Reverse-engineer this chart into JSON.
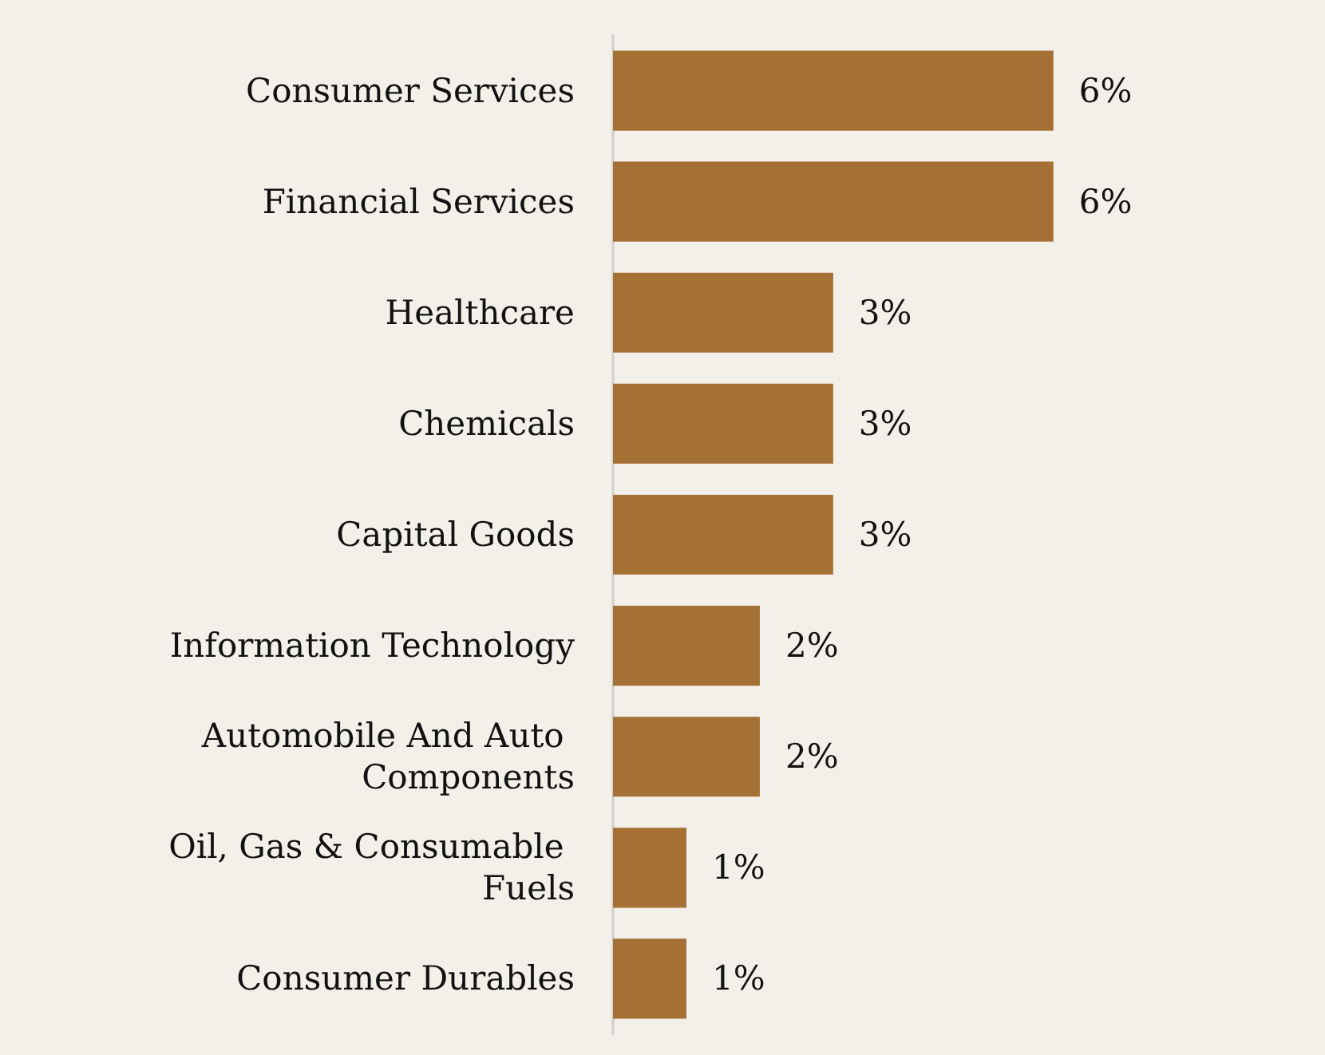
{
  "chart_data": {
    "type": "bar",
    "orientation": "horizontal",
    "categories": [
      "Consumer Services",
      "Financial Services",
      "Healthcare",
      "Chemicals",
      "Capital Goods",
      "Information Technology",
      "Automobile And Auto Components",
      "Oil, Gas & Consumable Fuels",
      "Consumer Durables"
    ],
    "values": [
      6,
      6,
      3,
      3,
      3,
      2,
      2,
      1,
      1
    ],
    "value_labels": [
      "6%",
      "6%",
      "3%",
      "3%",
      "3%",
      "2%",
      "2%",
      "1%",
      "1%"
    ],
    "color": "#a57033"
  }
}
